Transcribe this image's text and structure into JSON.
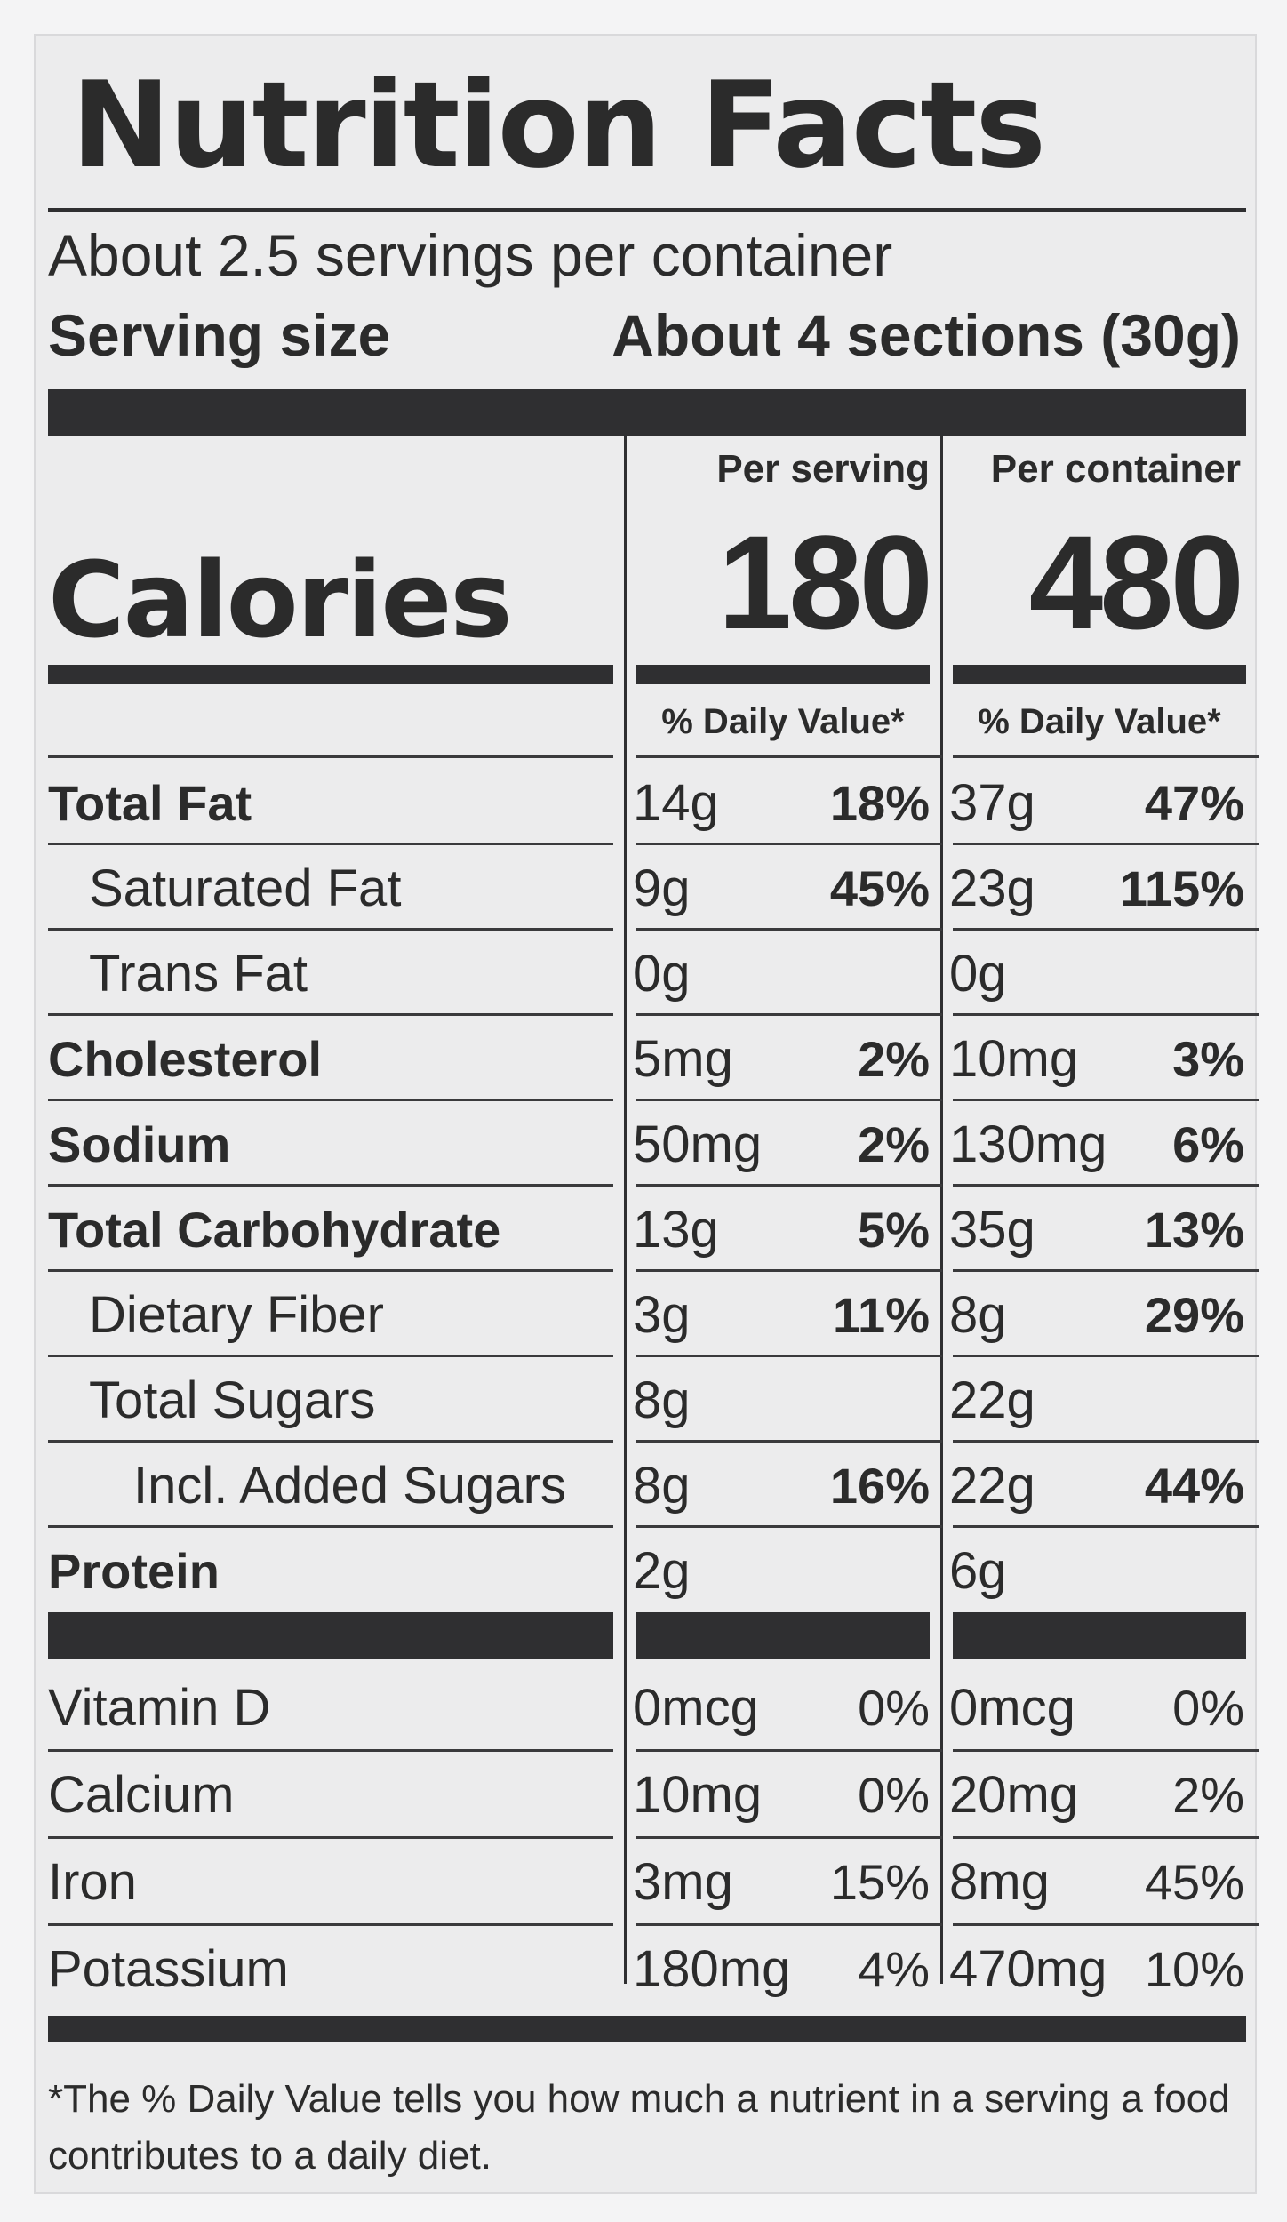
{
  "title": "Nutrition Facts",
  "servings_per_container": "About 2.5 servings per container",
  "serving_size": {
    "label": "Serving size",
    "value": "About 4 sections (30g)"
  },
  "calories": {
    "label": "Calories",
    "per_serving_heading": "Per serving",
    "per_container_heading": "Per container",
    "per_serving": "180",
    "per_container": "480"
  },
  "daily_value_heading": "% Daily Value*",
  "nutrients": [
    {
      "name": "Total Fat",
      "serving_amount": "14g",
      "serving_pct": "18%",
      "container_amount": "37g",
      "container_pct": "47%"
    },
    {
      "name": "Saturated Fat",
      "serving_amount": "9g",
      "serving_pct": "45%",
      "container_amount": "23g",
      "container_pct": "115%"
    },
    {
      "name": "Trans Fat",
      "serving_amount": "0g",
      "serving_pct": "",
      "container_amount": "0g",
      "container_pct": ""
    },
    {
      "name": "Cholesterol",
      "serving_amount": "5mg",
      "serving_pct": "2%",
      "container_amount": "10mg",
      "container_pct": "3%"
    },
    {
      "name": "Sodium",
      "serving_amount": "50mg",
      "serving_pct": "2%",
      "container_amount": "130mg",
      "container_pct": "6%"
    },
    {
      "name": "Total Carbohydrate",
      "serving_amount": "13g",
      "serving_pct": "5%",
      "container_amount": "35g",
      "container_pct": "13%"
    },
    {
      "name": "Dietary Fiber",
      "serving_amount": "3g",
      "serving_pct": "11%",
      "container_amount": "8g",
      "container_pct": "29%"
    },
    {
      "name": "Total Sugars",
      "serving_amount": "8g",
      "serving_pct": "",
      "container_amount": "22g",
      "container_pct": ""
    },
    {
      "name": "Incl. Added Sugars",
      "serving_amount": "8g",
      "serving_pct": "16%",
      "container_amount": "22g",
      "container_pct": "44%"
    },
    {
      "name": "Protein",
      "serving_amount": "2g",
      "serving_pct": "",
      "container_amount": "6g",
      "container_pct": ""
    }
  ],
  "vitamins": [
    {
      "name": "Vitamin D",
      "serving_amount": "0mcg",
      "serving_pct": "0%",
      "container_amount": "0mcg",
      "container_pct": "0%"
    },
    {
      "name": "Calcium",
      "serving_amount": "10mg",
      "serving_pct": "0%",
      "container_amount": "20mg",
      "container_pct": "2%"
    },
    {
      "name": "Iron",
      "serving_amount": "3mg",
      "serving_pct": "15%",
      "container_amount": "8mg",
      "container_pct": "45%"
    },
    {
      "name": "Potassium",
      "serving_amount": "180mg",
      "serving_pct": "4%",
      "container_amount": "470mg",
      "container_pct": "10%"
    }
  ],
  "footnote": "*The % Daily Value tells you how much a nutrient in a serving a food contributes to a daily diet."
}
